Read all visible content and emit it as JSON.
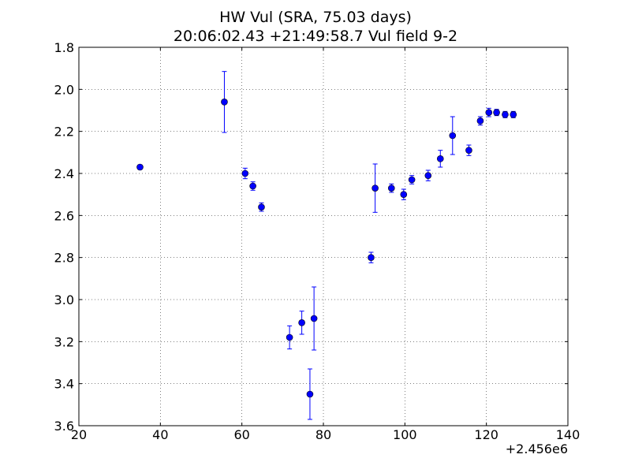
{
  "chart_data": {
    "type": "scatter",
    "title": "HW Vul (SRA, 75.03 days)",
    "subtitle": "20:06:02.43 +21:49:58.7 Vul field 9-2",
    "xlabel": "",
    "ylabel": "",
    "x_offset_label": "+2.456e6",
    "xlim": [
      20,
      140
    ],
    "ylim": [
      1.8,
      3.6
    ],
    "y_inverted": true,
    "grid": true,
    "x_ticks": [
      20,
      40,
      60,
      80,
      100,
      120,
      140
    ],
    "y_ticks": [
      1.8,
      2.0,
      2.2,
      2.4,
      2.6,
      2.8,
      3.0,
      3.2,
      3.4,
      3.6
    ],
    "x_tick_labels": [
      "20",
      "40",
      "60",
      "80",
      "100",
      "120",
      "140"
    ],
    "y_tick_labels": [
      "1.8",
      "2.0",
      "2.2",
      "2.4",
      "2.6",
      "2.8",
      "3.0",
      "3.2",
      "3.4",
      "3.6"
    ],
    "color": "#0000ff",
    "points": [
      {
        "x": 2456035.0,
        "y": 2.37,
        "err": 0.01
      },
      {
        "x": 2456055.7,
        "y": 2.06,
        "err": 0.145
      },
      {
        "x": 2456060.8,
        "y": 2.4,
        "err": 0.025
      },
      {
        "x": 2456062.7,
        "y": 2.46,
        "err": 0.02
      },
      {
        "x": 2456064.8,
        "y": 2.56,
        "err": 0.02
      },
      {
        "x": 2456071.7,
        "y": 3.18,
        "err": 0.055
      },
      {
        "x": 2456074.7,
        "y": 3.11,
        "err": 0.055
      },
      {
        "x": 2456076.7,
        "y": 3.45,
        "err": 0.12
      },
      {
        "x": 2456077.7,
        "y": 3.09,
        "err": 0.15
      },
      {
        "x": 2456091.7,
        "y": 2.8,
        "err": 0.025
      },
      {
        "x": 2456092.7,
        "y": 2.47,
        "err": 0.115
      },
      {
        "x": 2456096.7,
        "y": 2.47,
        "err": 0.02
      },
      {
        "x": 2456099.7,
        "y": 2.5,
        "err": 0.025
      },
      {
        "x": 2456101.7,
        "y": 2.43,
        "err": 0.02
      },
      {
        "x": 2456105.7,
        "y": 2.41,
        "err": 0.025
      },
      {
        "x": 2456108.7,
        "y": 2.33,
        "err": 0.04
      },
      {
        "x": 2456111.7,
        "y": 2.22,
        "err": 0.09
      },
      {
        "x": 2456115.7,
        "y": 2.29,
        "err": 0.025
      },
      {
        "x": 2456118.5,
        "y": 2.15,
        "err": 0.02
      },
      {
        "x": 2456120.6,
        "y": 2.11,
        "err": 0.02
      },
      {
        "x": 2456122.5,
        "y": 2.11,
        "err": 0.015
      },
      {
        "x": 2456124.6,
        "y": 2.12,
        "err": 0.015
      },
      {
        "x": 2456126.6,
        "y": 2.12,
        "err": 0.015
      }
    ]
  }
}
